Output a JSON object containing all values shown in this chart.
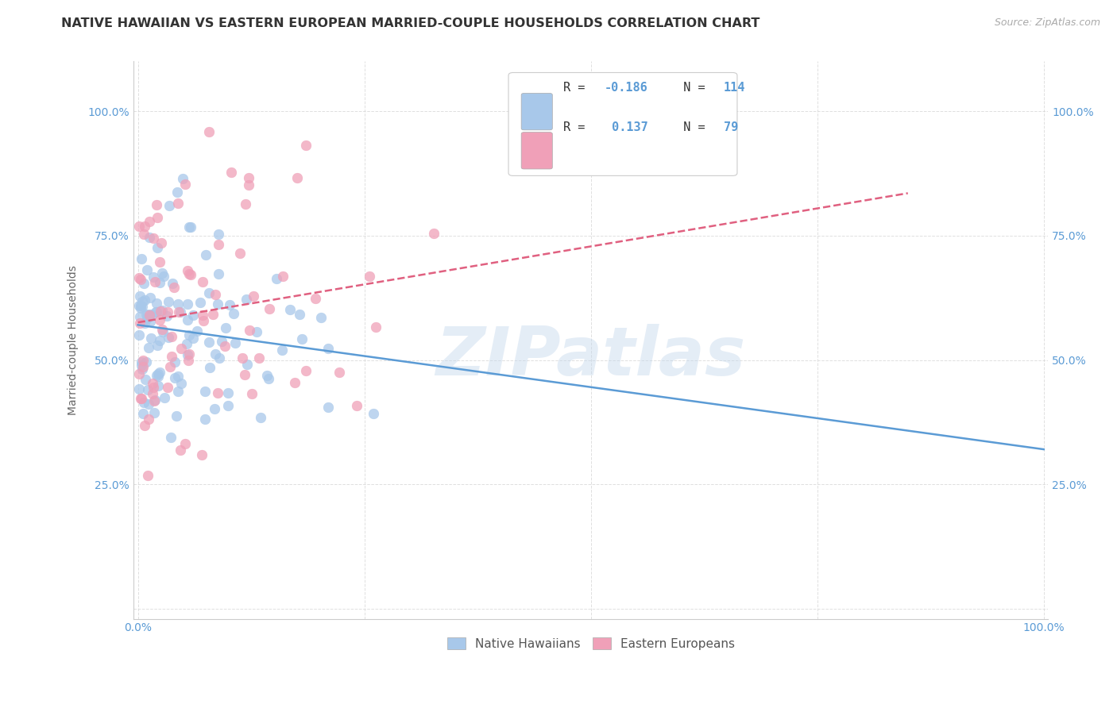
{
  "title": "NATIVE HAWAIIAN VS EASTERN EUROPEAN MARRIED-COUPLE HOUSEHOLDS CORRELATION CHART",
  "source": "Source: ZipAtlas.com",
  "ylabel": "Married-couple Households",
  "xlim": [
    -0.005,
    1.005
  ],
  "ylim": [
    -0.02,
    1.1
  ],
  "blue_color": "#A8C8EA",
  "pink_color": "#F0A0B8",
  "blue_line_color": "#5B9BD5",
  "pink_line_color": "#E06080",
  "legend_R_blue": "-0.186",
  "legend_N_blue": "114",
  "legend_R_pink": "0.137",
  "legend_N_pink": "79",
  "background_color": "#FFFFFF",
  "grid_color": "#D8D8D8",
  "title_color": "#333333",
  "axis_label_color": "#5B9BD5",
  "watermark": "ZIPatlas",
  "watermark_color": "#C5D8EC",
  "watermark_alpha": 0.45,
  "blue_seed": 42,
  "pink_seed": 99
}
